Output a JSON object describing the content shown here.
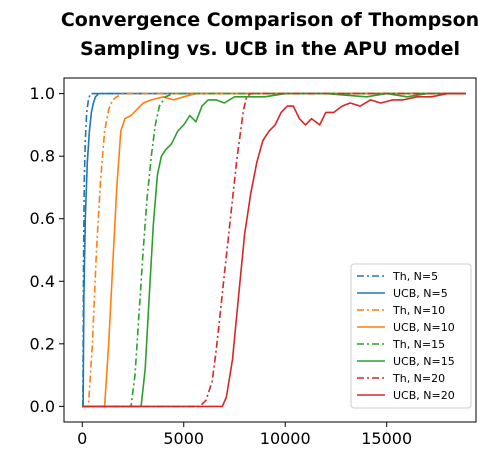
{
  "chart_data": {
    "type": "line",
    "title_lines": [
      "Convergence Comparison of Thompson",
      "Sampling vs. UCB in the APU model"
    ],
    "xlabel": "",
    "ylabel": "",
    "xlim": [
      -900,
      19400
    ],
    "ylim": [
      -0.05,
      1.05
    ],
    "x_ticks": [
      0,
      5000,
      10000,
      15000
    ],
    "x_tick_labels": [
      "0",
      "5000",
      "10000",
      "15000"
    ],
    "y_ticks": [
      0.0,
      0.2,
      0.4,
      0.6,
      0.8,
      1.0
    ],
    "y_tick_labels": [
      "0.0",
      "0.2",
      "0.4",
      "0.6",
      "0.8",
      "1.0"
    ],
    "grid": false,
    "legend_position": "lower-right",
    "series": [
      {
        "name": "Th, N=5",
        "color": "#1f77b4",
        "dash": "dashdot",
        "points": [
          [
            0,
            0
          ],
          [
            30,
            0
          ],
          [
            60,
            0.45
          ],
          [
            100,
            0.72
          ],
          [
            150,
            0.85
          ],
          [
            220,
            0.94
          ],
          [
            300,
            0.98
          ],
          [
            400,
            1.0
          ],
          [
            18900,
            1.0
          ]
        ]
      },
      {
        "name": "UCB, N=5",
        "color": "#1f77b4",
        "dash": "solid",
        "points": [
          [
            0,
            0
          ],
          [
            40,
            0
          ],
          [
            80,
            0.35
          ],
          [
            150,
            0.6
          ],
          [
            250,
            0.78
          ],
          [
            350,
            0.88
          ],
          [
            450,
            0.94
          ],
          [
            550,
            0.97
          ],
          [
            650,
            0.99
          ],
          [
            800,
            1.0
          ],
          [
            18900,
            1.0
          ]
        ]
      },
      {
        "name": "Th, N=10",
        "color": "#ff7f0e",
        "dash": "dashdot",
        "points": [
          [
            0,
            0
          ],
          [
            300,
            0
          ],
          [
            500,
            0.2
          ],
          [
            700,
            0.5
          ],
          [
            900,
            0.72
          ],
          [
            1100,
            0.88
          ],
          [
            1300,
            0.95
          ],
          [
            1500,
            0.98
          ],
          [
            1700,
            0.99
          ],
          [
            2000,
            1.0
          ],
          [
            18900,
            1.0
          ]
        ]
      },
      {
        "name": "UCB, N=10",
        "color": "#ff7f0e",
        "dash": "solid",
        "points": [
          [
            0,
            0
          ],
          [
            1100,
            0
          ],
          [
            1300,
            0.2
          ],
          [
            1500,
            0.45
          ],
          [
            1700,
            0.7
          ],
          [
            1900,
            0.88
          ],
          [
            2100,
            0.92
          ],
          [
            2400,
            0.93
          ],
          [
            2700,
            0.95
          ],
          [
            3000,
            0.97
          ],
          [
            3400,
            0.98
          ],
          [
            4000,
            0.99
          ],
          [
            4500,
            0.98
          ],
          [
            5000,
            0.99
          ],
          [
            5600,
            1.0
          ],
          [
            18900,
            1.0
          ]
        ]
      },
      {
        "name": "Th, N=15",
        "color": "#2ca02c",
        "dash": "dashdot",
        "points": [
          [
            0,
            0
          ],
          [
            2400,
            0
          ],
          [
            2600,
            0.1
          ],
          [
            2800,
            0.3
          ],
          [
            3000,
            0.5
          ],
          [
            3200,
            0.67
          ],
          [
            3400,
            0.8
          ],
          [
            3600,
            0.9
          ],
          [
            3800,
            0.96
          ],
          [
            4100,
            0.99
          ],
          [
            4500,
            1.0
          ],
          [
            18900,
            1.0
          ]
        ]
      },
      {
        "name": "UCB, N=15",
        "color": "#2ca02c",
        "dash": "solid",
        "points": [
          [
            0,
            0
          ],
          [
            2900,
            0
          ],
          [
            3100,
            0.12
          ],
          [
            3300,
            0.35
          ],
          [
            3500,
            0.58
          ],
          [
            3700,
            0.74
          ],
          [
            3900,
            0.8
          ],
          [
            4100,
            0.82
          ],
          [
            4400,
            0.84
          ],
          [
            4700,
            0.88
          ],
          [
            5000,
            0.9
          ],
          [
            5300,
            0.93
          ],
          [
            5600,
            0.91
          ],
          [
            5900,
            0.96
          ],
          [
            6200,
            0.98
          ],
          [
            6600,
            0.98
          ],
          [
            7000,
            0.97
          ],
          [
            7500,
            0.99
          ],
          [
            8000,
            0.99
          ],
          [
            9000,
            0.99
          ],
          [
            10000,
            1.0
          ],
          [
            12000,
            1.0
          ],
          [
            14000,
            0.99
          ],
          [
            15000,
            1.0
          ],
          [
            16000,
            0.99
          ],
          [
            17000,
            1.0
          ],
          [
            18900,
            1.0
          ]
        ]
      },
      {
        "name": "Th, N=20",
        "color": "#d62728",
        "dash": "dashdot",
        "points": [
          [
            0,
            0
          ],
          [
            5800,
            0
          ],
          [
            6100,
            0.02
          ],
          [
            6400,
            0.08
          ],
          [
            6600,
            0.18
          ],
          [
            6800,
            0.3
          ],
          [
            7000,
            0.42
          ],
          [
            7300,
            0.6
          ],
          [
            7600,
            0.78
          ],
          [
            7800,
            0.88
          ],
          [
            7950,
            0.95
          ],
          [
            8100,
            0.99
          ],
          [
            8300,
            1.0
          ],
          [
            18900,
            1.0
          ]
        ]
      },
      {
        "name": "UCB, N=20",
        "color": "#d62728",
        "dash": "solid",
        "points": [
          [
            0,
            0
          ],
          [
            6900,
            0
          ],
          [
            7100,
            0.03
          ],
          [
            7400,
            0.15
          ],
          [
            7700,
            0.35
          ],
          [
            8000,
            0.55
          ],
          [
            8300,
            0.68
          ],
          [
            8600,
            0.78
          ],
          [
            8900,
            0.85
          ],
          [
            9200,
            0.88
          ],
          [
            9500,
            0.9
          ],
          [
            9800,
            0.94
          ],
          [
            10100,
            0.96
          ],
          [
            10400,
            0.96
          ],
          [
            10700,
            0.92
          ],
          [
            11000,
            0.9
          ],
          [
            11300,
            0.92
          ],
          [
            11700,
            0.9
          ],
          [
            12000,
            0.94
          ],
          [
            12400,
            0.94
          ],
          [
            12800,
            0.96
          ],
          [
            13200,
            0.97
          ],
          [
            13700,
            0.96
          ],
          [
            14200,
            0.98
          ],
          [
            14700,
            0.97
          ],
          [
            15300,
            0.98
          ],
          [
            15800,
            0.98
          ],
          [
            16500,
            0.99
          ],
          [
            17200,
            0.99
          ],
          [
            18000,
            1.0
          ],
          [
            18900,
            1.0
          ]
        ]
      }
    ]
  }
}
